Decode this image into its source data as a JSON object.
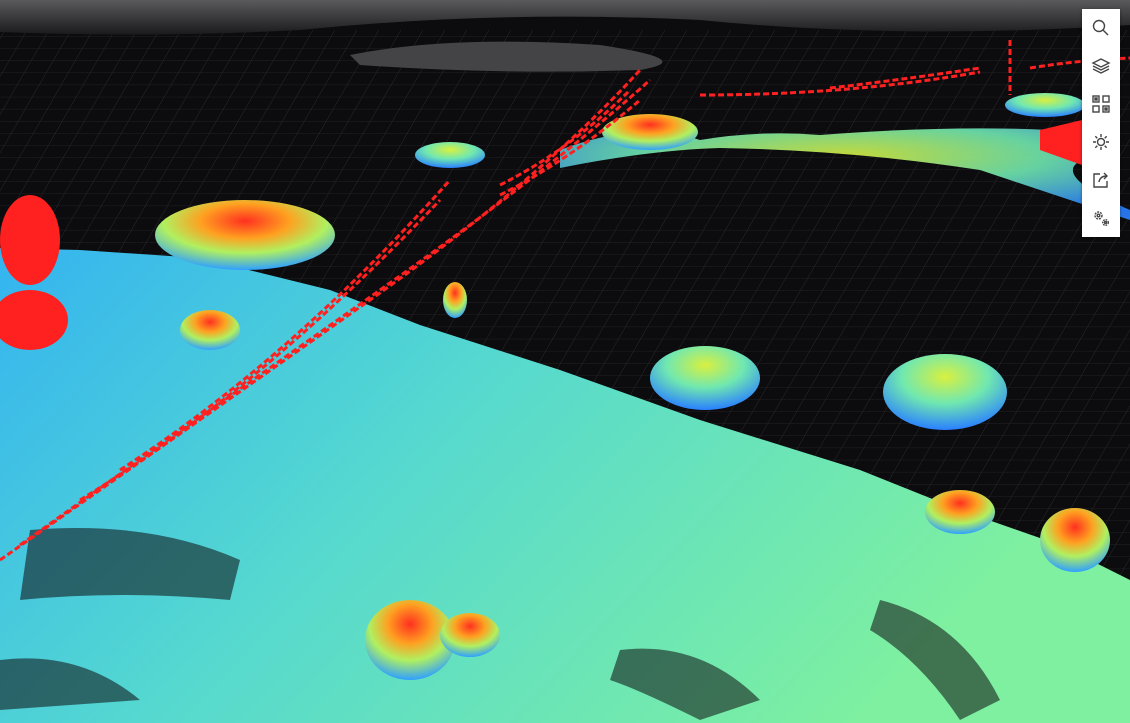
{
  "viewer": {
    "type": "point-cloud-3d",
    "colors": {
      "background": "#0c0c0e",
      "grid": "#2c2c30",
      "low": "#2a8cff",
      "mid": "#6fe8a8",
      "high": "#ff2020"
    }
  },
  "toolbar": {
    "items": [
      {
        "id": "search",
        "icon": "search-icon"
      },
      {
        "id": "layers",
        "icon": "layers-icon"
      },
      {
        "id": "qr",
        "icon": "qr-code-icon"
      },
      {
        "id": "lighting",
        "icon": "sun-icon"
      },
      {
        "id": "share",
        "icon": "share-export-icon"
      },
      {
        "id": "settings",
        "icon": "gears-icon"
      }
    ]
  }
}
